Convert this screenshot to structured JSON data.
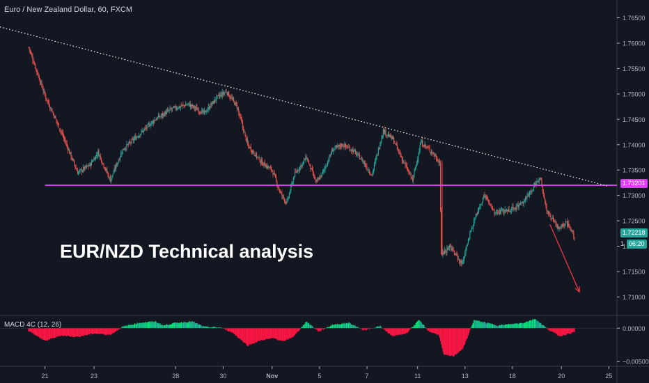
{
  "chart_data": {
    "type": "candlestick",
    "symbol_title": "Euro / New Zealand Dollar, 60, FXCM",
    "headline": "EUR/NZD Technical analysis",
    "price_axis": {
      "ticks": [
        1.765,
        1.76,
        1.755,
        1.75,
        1.745,
        1.74,
        1.735,
        1.73,
        1.725,
        1.72,
        1.715,
        1.71
      ],
      "tick_labels": [
        "1.76500",
        "1.76000",
        "1.75500",
        "1.75000",
        "1.74500",
        "1.74000",
        "1.73500",
        "1.73000",
        "1.72500",
        "1.72000",
        "1.71500",
        "1.71000"
      ],
      "range": [
        1.7065,
        1.7685
      ]
    },
    "time_axis": {
      "labels": [
        "21",
        "23",
        "28",
        "30",
        "Nov",
        "5",
        "7",
        "11",
        "13",
        "18",
        "20",
        "25"
      ],
      "label_index": [
        20,
        80,
        180,
        238,
        298,
        356,
        414,
        476,
        534,
        592,
        652,
        710
      ],
      "range": [
        -35,
        720
      ]
    },
    "horizontal_level": {
      "value": 1.73201,
      "label": "1.73201",
      "color": "#e040fb"
    },
    "trendline": {
      "from": [
        -35,
        1.7632
      ],
      "to": [
        710,
        1.7318
      ],
      "style": "dotted",
      "color": "#ffffff"
    },
    "forecast_arrow": {
      "from": [
        638,
        1.7243
      ],
      "to": [
        674,
        1.711
      ],
      "color": "#f23645"
    },
    "last_price": {
      "value": 1.72218,
      "label": "1.72218",
      "countdown": "06:20",
      "prefix": "1"
    },
    "anchor_prices": [
      [
        0,
        1.7592
      ],
      [
        20,
        1.7497
      ],
      [
        40,
        1.7425
      ],
      [
        60,
        1.7345
      ],
      [
        75,
        1.736
      ],
      [
        85,
        1.7385
      ],
      [
        100,
        1.733
      ],
      [
        115,
        1.739
      ],
      [
        135,
        1.742
      ],
      [
        155,
        1.745
      ],
      [
        175,
        1.747
      ],
      [
        195,
        1.748
      ],
      [
        215,
        1.7462
      ],
      [
        230,
        1.7492
      ],
      [
        242,
        1.7505
      ],
      [
        255,
        1.7475
      ],
      [
        268,
        1.74
      ],
      [
        285,
        1.7365
      ],
      [
        298,
        1.735
      ],
      [
        308,
        1.7305
      ],
      [
        316,
        1.7285
      ],
      [
        325,
        1.734
      ],
      [
        340,
        1.7375
      ],
      [
        352,
        1.7325
      ],
      [
        360,
        1.7345
      ],
      [
        372,
        1.739
      ],
      [
        384,
        1.74
      ],
      [
        396,
        1.739
      ],
      [
        408,
        1.737
      ],
      [
        420,
        1.734
      ],
      [
        434,
        1.7428
      ],
      [
        446,
        1.741
      ],
      [
        462,
        1.7355
      ],
      [
        470,
        1.733
      ],
      [
        480,
        1.7405
      ],
      [
        494,
        1.7385
      ],
      [
        503,
        1.7365
      ],
      [
        505,
        1.718
      ],
      [
        515,
        1.72
      ],
      [
        530,
        1.7165
      ],
      [
        545,
        1.725
      ],
      [
        558,
        1.73
      ],
      [
        570,
        1.7265
      ],
      [
        585,
        1.727
      ],
      [
        600,
        1.728
      ],
      [
        612,
        1.73
      ],
      [
        626,
        1.7338
      ],
      [
        634,
        1.727
      ],
      [
        648,
        1.7235
      ],
      [
        658,
        1.7245
      ],
      [
        668,
        1.722
      ]
    ],
    "macd": {
      "label": "MACD 4C (12, 26)",
      "ticks": [
        0.0,
        -0.005
      ],
      "tick_labels": [
        "0.00000",
        "−0.00500"
      ],
      "range": [
        -0.0056,
        0.0018
      ],
      "positive_color": "#26a69a",
      "rising_positive_color": "#00e676",
      "negative_color": "#ff1744",
      "anchor_values": [
        [
          0,
          -0.0004
        ],
        [
          20,
          -0.0019
        ],
        [
          40,
          -0.0011
        ],
        [
          60,
          -0.0013
        ],
        [
          80,
          -0.0008
        ],
        [
          100,
          -0.001
        ],
        [
          115,
          0.0002
        ],
        [
          135,
          0.0008
        ],
        [
          155,
          0.001
        ],
        [
          165,
          0.0004
        ],
        [
          180,
          0.0008
        ],
        [
          200,
          0.001
        ],
        [
          215,
          0.0002
        ],
        [
          235,
          0.0001
        ],
        [
          250,
          -0.0007
        ],
        [
          268,
          -0.0026
        ],
        [
          285,
          -0.0018
        ],
        [
          300,
          -0.0015
        ],
        [
          312,
          -0.002
        ],
        [
          325,
          -0.0012
        ],
        [
          340,
          0.001
        ],
        [
          355,
          -0.0005
        ],
        [
          372,
          0.0005
        ],
        [
          392,
          0.0008
        ],
        [
          410,
          -0.0003
        ],
        [
          430,
          0.0003
        ],
        [
          445,
          -0.0012
        ],
        [
          462,
          -0.0008
        ],
        [
          478,
          0.0012
        ],
        [
          490,
          -0.0005
        ],
        [
          502,
          -0.001
        ],
        [
          508,
          -0.004
        ],
        [
          520,
          -0.0042
        ],
        [
          532,
          -0.003
        ],
        [
          545,
          0.0012
        ],
        [
          560,
          0.0008
        ],
        [
          575,
          0.0004
        ],
        [
          590,
          0.0006
        ],
        [
          605,
          0.0008
        ],
        [
          620,
          0.0014
        ],
        [
          636,
          -0.0002
        ],
        [
          650,
          -0.0012
        ],
        [
          668,
          -0.0006
        ]
      ]
    },
    "colors": {
      "background": "#131722",
      "up_candle": "#26a69a",
      "down_candle": "#ef5350",
      "axis_text": "#b2b5be",
      "divider": "#363a45"
    }
  }
}
